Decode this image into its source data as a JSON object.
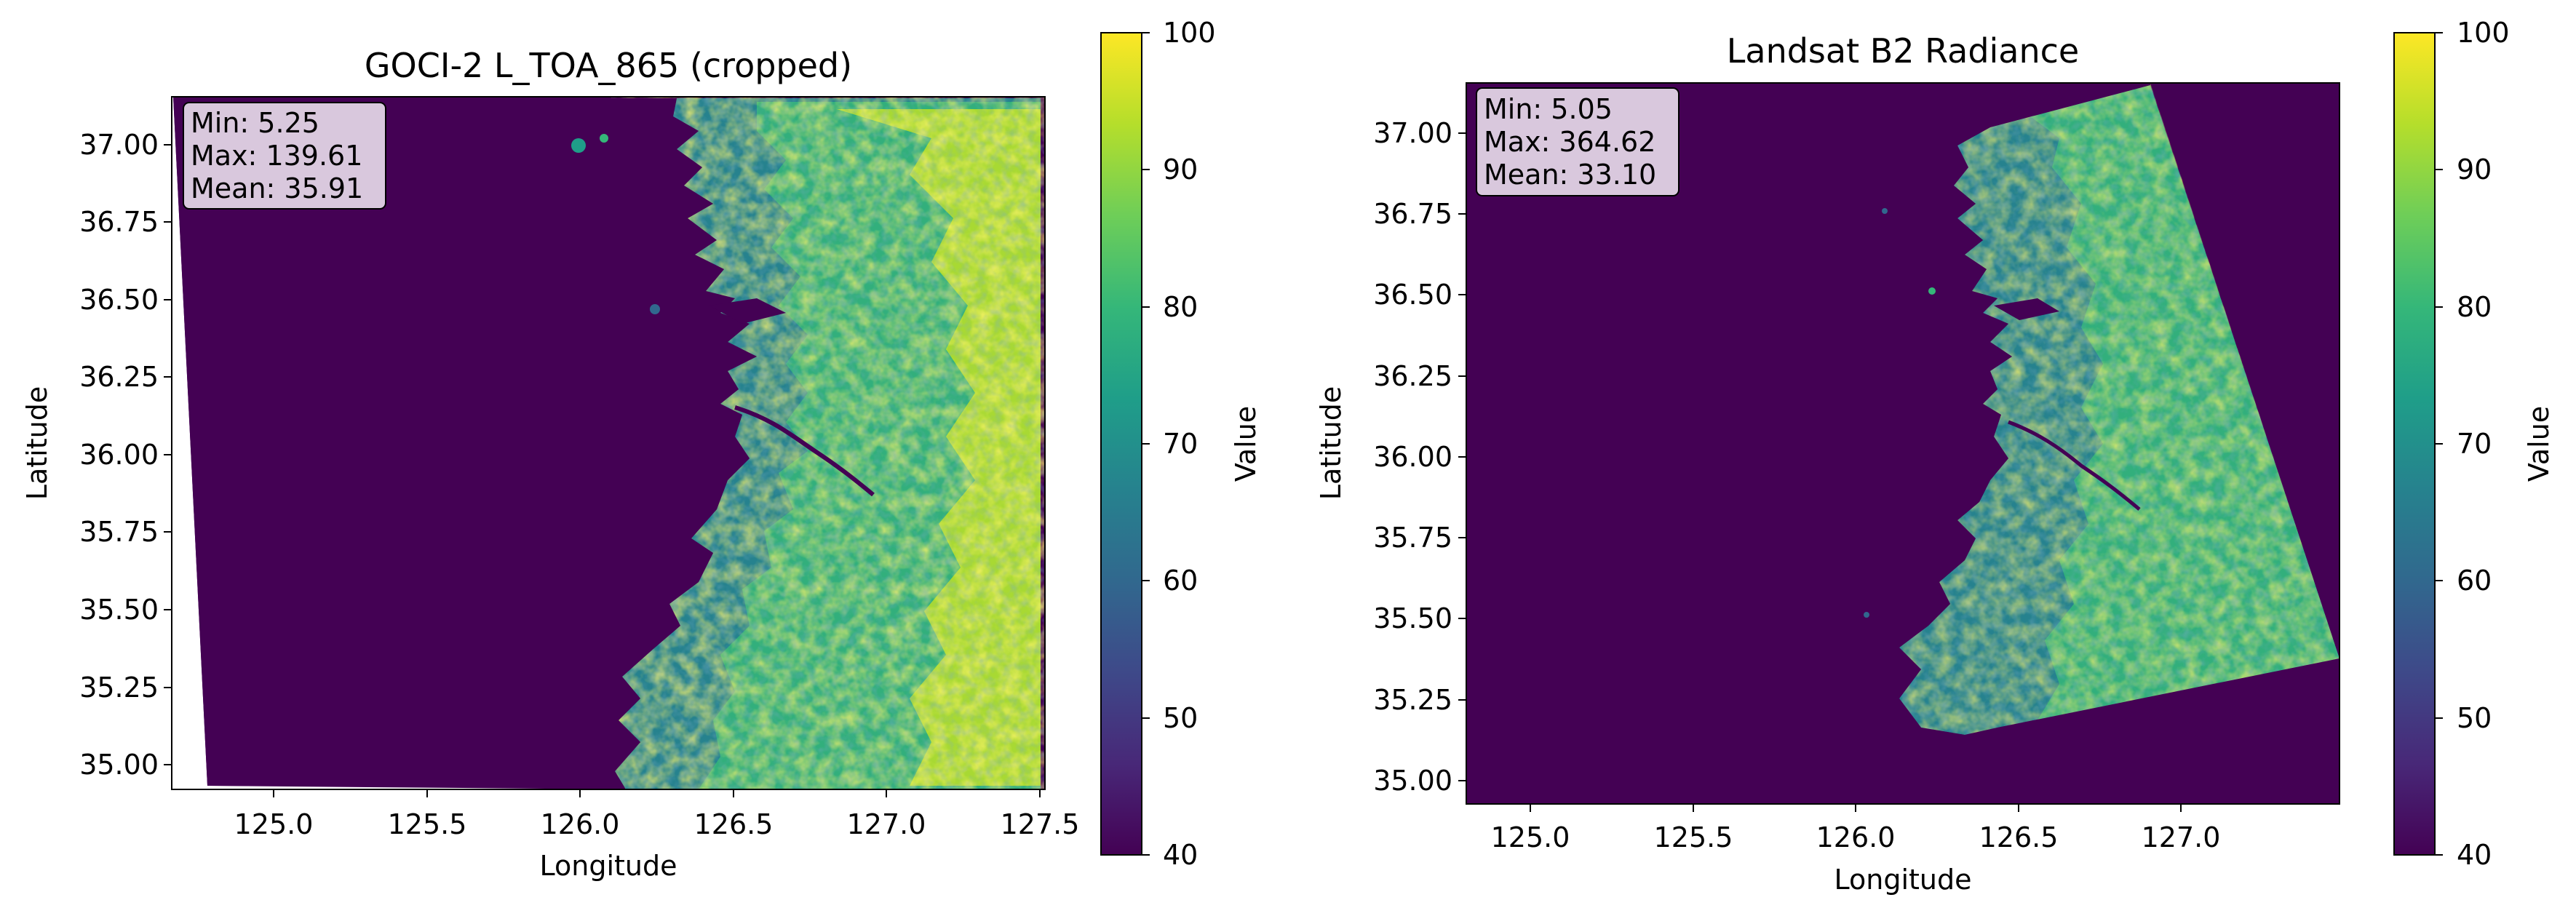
{
  "chart_data": [
    {
      "type": "heatmap",
      "title": "GOCI-2 L_TOA_865 (cropped)",
      "xlabel": "Longitude",
      "ylabel": "Latitude",
      "xlim": [
        124.7,
        127.55
      ],
      "ylim": [
        34.92,
        37.15
      ],
      "x_ticks": [
        "125.0",
        "125.5",
        "126.0",
        "126.5",
        "127.0",
        "127.5"
      ],
      "y_ticks": [
        "35.00",
        "35.25",
        "35.50",
        "35.75",
        "36.00",
        "36.25",
        "36.50",
        "36.75",
        "37.00"
      ],
      "stats": [
        "Min: 5.25",
        "Max: 139.61",
        "Mean: 35.91"
      ],
      "colorbar": {
        "label": "Value",
        "range": [
          40,
          100
        ],
        "ticks": [
          "40",
          "50",
          "60",
          "70",
          "80",
          "90",
          "100"
        ],
        "colormap": "viridis"
      }
    },
    {
      "type": "heatmap",
      "title": "Landsat B2 Radiance",
      "xlabel": "Longitude",
      "ylabel": "Latitude",
      "xlim": [
        124.8,
        127.5
      ],
      "ylim": [
        34.93,
        37.18
      ],
      "x_ticks": [
        "125.0",
        "125.5",
        "126.0",
        "126.5",
        "127.0"
      ],
      "y_ticks": [
        "35.00",
        "35.25",
        "35.50",
        "35.75",
        "36.00",
        "36.25",
        "36.50",
        "36.75",
        "37.00"
      ],
      "stats": [
        "Min: 5.05",
        "Max: 364.62",
        "Mean: 33.10"
      ],
      "colorbar": {
        "label": "Value",
        "range": [
          40,
          100
        ],
        "ticks": [
          "40",
          "50",
          "60",
          "70",
          "80",
          "90",
          "100"
        ],
        "colormap": "viridis"
      }
    }
  ],
  "colors": {
    "background": "#440154",
    "viridis": [
      "#440154",
      "#482878",
      "#3e4989",
      "#31688e",
      "#26828e",
      "#1f9e89",
      "#35b779",
      "#6ece58",
      "#b5de2b",
      "#fde725"
    ],
    "stats_box_fill": "#d9c8dd"
  }
}
